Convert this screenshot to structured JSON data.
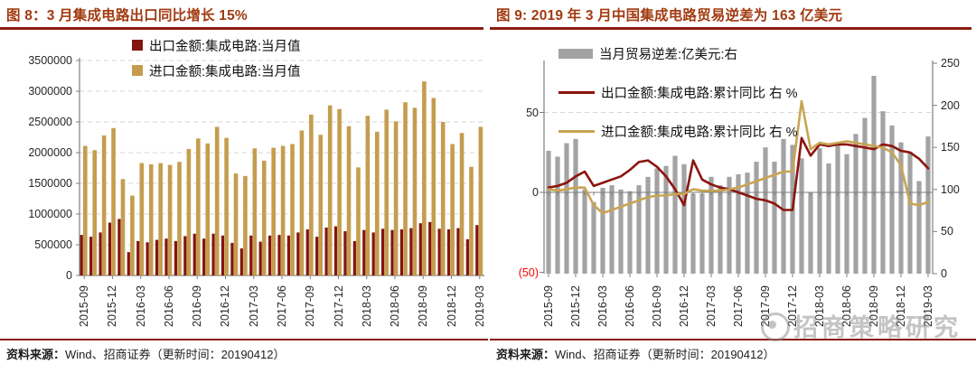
{
  "colors": {
    "title_red": "#A23A10",
    "rule_red": "#8C1D10",
    "bar_dark_red": "#83150F",
    "bar_gold": "#C49D4E",
    "line_red": "#8B150E",
    "line_gold": "#C9A452",
    "bar_gray": "#A3A3A3",
    "axis_gray": "#7F7F7F",
    "grid_gray": "#D6D6D6",
    "neg_red": "#FF0000",
    "text_dark": "#262626",
    "watermark_gray": "#8A8A8A"
  },
  "panels": [
    {
      "source": {
        "label": "资料来源：",
        "text": "Wind、招商证券（更新时间：20190412）"
      }
    },
    {
      "source": {
        "label": "资料来源：",
        "text": "Wind、招商证券（更新时间：20190412）"
      },
      "watermark": "招商策略研究"
    }
  ],
  "chart_data": [
    {
      "type": "bar",
      "title": "图 8：3 月集成电路出口同比增长 15%",
      "categories": [
        "2015-09",
        "2015-10",
        "2015-11",
        "2015-12",
        "2016-01",
        "2016-02",
        "2016-03",
        "2016-04",
        "2016-05",
        "2016-06",
        "2016-07",
        "2016-08",
        "2016-09",
        "2016-10",
        "2016-11",
        "2016-12",
        "2017-01",
        "2017-02",
        "2017-03",
        "2017-04",
        "2017-05",
        "2017-06",
        "2017-07",
        "2017-08",
        "2017-09",
        "2017-10",
        "2017-11",
        "2017-12",
        "2018-01",
        "2018-02",
        "2018-03",
        "2018-04",
        "2018-05",
        "2018-06",
        "2018-07",
        "2018-08",
        "2018-09",
        "2018-10",
        "2018-11",
        "2018-12",
        "2019-01",
        "2019-02",
        "2019-03"
      ],
      "xtick_every": 3,
      "ylim": [
        0,
        3500000
      ],
      "yticks": [
        0,
        500000,
        1000000,
        1500000,
        2000000,
        2500000,
        3000000,
        3500000
      ],
      "grid": "dashed-horizontal",
      "legend_position": "top-center",
      "series": [
        {
          "name": "出口金额:集成电路:当月值",
          "color_key": "bar_dark_red",
          "values": [
            660000,
            630000,
            700000,
            860000,
            920000,
            380000,
            560000,
            540000,
            580000,
            600000,
            560000,
            640000,
            680000,
            600000,
            680000,
            650000,
            530000,
            440000,
            650000,
            550000,
            650000,
            660000,
            650000,
            700000,
            750000,
            630000,
            780000,
            800000,
            720000,
            560000,
            740000,
            700000,
            760000,
            740000,
            750000,
            770000,
            850000,
            870000,
            760000,
            750000,
            770000,
            590000,
            820000
          ]
        },
        {
          "name": "进口金额:集成电路:当月值",
          "color_key": "bar_gold",
          "values": [
            2110000,
            2040000,
            2280000,
            2400000,
            1570000,
            1300000,
            1830000,
            1810000,
            1830000,
            1800000,
            1850000,
            2060000,
            2230000,
            2150000,
            2420000,
            2240000,
            1660000,
            1620000,
            2070000,
            1870000,
            2080000,
            2110000,
            2140000,
            2360000,
            2620000,
            2290000,
            2770000,
            2710000,
            2430000,
            1760000,
            2600000,
            2340000,
            2700000,
            2510000,
            2820000,
            2730000,
            3160000,
            2890000,
            2500000,
            2140000,
            2320000,
            1770000,
            2420000
          ]
        }
      ]
    },
    {
      "type": "combo-bar-line",
      "title": "图 9: 2019 年 3 月中国集成电路贸易逆差为 163 亿美元",
      "categories": [
        "2015-09",
        "2015-10",
        "2015-11",
        "2015-12",
        "2016-01",
        "2016-02",
        "2016-03",
        "2016-04",
        "2016-05",
        "2016-06",
        "2016-07",
        "2016-08",
        "2016-09",
        "2016-10",
        "2016-11",
        "2016-12",
        "2017-01",
        "2017-02",
        "2017-03",
        "2017-04",
        "2017-05",
        "2017-06",
        "2017-07",
        "2017-08",
        "2017-09",
        "2017-10",
        "2017-11",
        "2017-12",
        "2018-01",
        "2018-02",
        "2018-03",
        "2018-04",
        "2018-05",
        "2018-06",
        "2018-07",
        "2018-08",
        "2018-09",
        "2018-10",
        "2018-11",
        "2018-12",
        "2019-01",
        "2019-02",
        "2019-03"
      ],
      "xtick_every": 3,
      "left_axis": {
        "range": [
          -52,
          82.5
        ],
        "ticks": [
          50,
          0,
          -50
        ],
        "tick_labels": [
          "50",
          "0",
          "(50)"
        ],
        "negative_in_red_parentheses": true
      },
      "right_axis": {
        "range": [
          0,
          250
        ],
        "ticks": [
          250,
          200,
          150,
          100,
          50,
          0
        ],
        "tick_labels": [
          "250",
          "200",
          "150",
          "100",
          "50",
          "0"
        ]
      },
      "grid": "dashed line at left-axis 50 only",
      "legend_position": "top-left",
      "bar_series": {
        "name": "当月贸易逆差:亿美元:右",
        "axis": "right",
        "color_key": "bar_gray",
        "values": [
          146,
          139,
          155,
          160,
          100,
          85,
          102,
          105,
          100,
          98,
          105,
          115,
          125,
          128,
          140,
          130,
          95,
          95,
          115,
          105,
          115,
          118,
          120,
          133,
          150,
          133,
          160,
          153,
          137,
          96,
          149,
          131,
          155,
          142,
          166,
          185,
          235,
          193,
          176,
          156,
          145,
          110,
          163
        ]
      },
      "line_series": [
        {
          "name": "出口金额:集成电路:累计同比 右 %",
          "axis": "left",
          "color_key": "line_red",
          "values": [
            3,
            4,
            6,
            10,
            13,
            4,
            6,
            8,
            10,
            14,
            19,
            20,
            16,
            10,
            2,
            -8,
            20,
            8,
            5,
            3,
            2,
            0,
            -2,
            -4,
            -5,
            -7,
            -11,
            -11,
            34,
            23,
            30,
            29,
            30,
            30,
            29,
            28,
            27,
            30,
            29,
            26,
            25,
            21,
            15
          ]
        },
        {
          "name": "进口金额:集成电路:累计同比 右 %",
          "axis": "left",
          "color_key": "line_gold",
          "values": [
            2,
            1,
            2,
            3,
            3,
            -8,
            -13,
            -11,
            -9,
            -7,
            -5,
            -3,
            -2,
            -2,
            -1,
            -1,
            2,
            1,
            1,
            1,
            2,
            3,
            5,
            7,
            9,
            11,
            13,
            13,
            57,
            27,
            31,
            30,
            31,
            32,
            31,
            30,
            29,
            28,
            25,
            17,
            -7,
            -8,
            -6
          ]
        }
      ]
    }
  ]
}
